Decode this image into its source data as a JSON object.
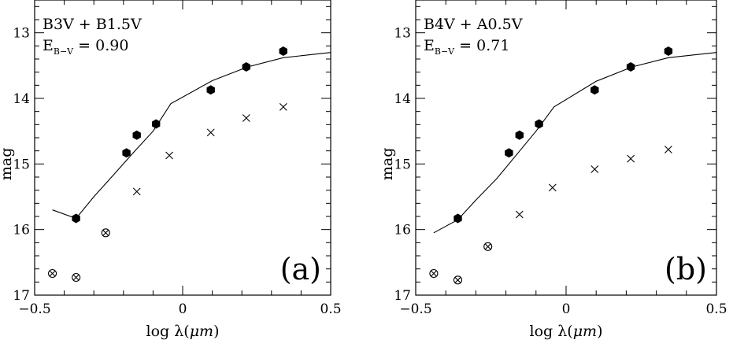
{
  "chart_data": [
    {
      "type": "scatter",
      "panel_label": "(a)",
      "annotation_line1": "B3V  +  B1.5V",
      "ebv_prefix": "E",
      "ebv_sub": "B−V",
      "ebv_value": " =  0.90",
      "xlabel_main": "log λ(",
      "xlabel_unit": "μm",
      "xlabel_close": ")",
      "ylabel": "mag",
      "xlim": [
        -0.5,
        0.5
      ],
      "ylim": [
        17,
        12.5
      ],
      "y_inverted": true,
      "xticks": [
        -0.5,
        0,
        0.5
      ],
      "xtick_labels": [
        "−0.5",
        "0",
        "0.5"
      ],
      "yticks": [
        13,
        14,
        15,
        16,
        17
      ],
      "ytick_labels": [
        "13",
        "14",
        "15",
        "16",
        "17"
      ],
      "series": [
        {
          "marker": "filled-hexagon",
          "x": [
            -0.36,
            -0.19,
            -0.155,
            -0.09,
            0.095,
            0.215,
            0.34
          ],
          "y": [
            15.83,
            14.83,
            14.56,
            14.39,
            13.87,
            13.52,
            13.28
          ]
        },
        {
          "marker": "cross",
          "x": [
            -0.155,
            -0.045,
            0.095,
            0.215,
            0.34
          ],
          "y": [
            15.42,
            14.87,
            14.52,
            14.3,
            14.13
          ]
        },
        {
          "marker": "circled-cross",
          "x": [
            -0.44,
            -0.36,
            -0.26
          ],
          "y": [
            16.67,
            16.73,
            16.05
          ]
        },
        {
          "marker": "line",
          "x": [
            -0.44,
            -0.36,
            -0.3,
            -0.23,
            -0.165,
            -0.1,
            -0.04,
            0.1,
            0.22,
            0.34,
            0.5
          ],
          "y": [
            15.7,
            15.83,
            15.5,
            15.15,
            14.82,
            14.5,
            14.08,
            13.73,
            13.52,
            13.38,
            13.3
          ]
        }
      ]
    },
    {
      "type": "scatter",
      "panel_label": "(b)",
      "annotation_line1": "B4V  +  A0.5V",
      "ebv_prefix": "E",
      "ebv_sub": "B−V",
      "ebv_value": " =  0.71",
      "xlabel_main": "log λ(",
      "xlabel_unit": "μm",
      "xlabel_close": ")",
      "ylabel": "mag",
      "xlim": [
        -0.5,
        0.5
      ],
      "ylim": [
        17,
        12.5
      ],
      "y_inverted": true,
      "xticks": [
        -0.5,
        0,
        0.5
      ],
      "xtick_labels": [
        "−0.5",
        "0",
        "0.5"
      ],
      "yticks": [
        13,
        14,
        15,
        16,
        17
      ],
      "ytick_labels": [
        "13",
        "14",
        "15",
        "16",
        "17"
      ],
      "series": [
        {
          "marker": "filled-hexagon",
          "x": [
            -0.36,
            -0.19,
            -0.155,
            -0.09,
            0.095,
            0.215,
            0.34
          ],
          "y": [
            15.83,
            14.83,
            14.56,
            14.39,
            13.87,
            13.52,
            13.28
          ]
        },
        {
          "marker": "cross",
          "x": [
            -0.155,
            -0.045,
            0.095,
            0.215,
            0.34
          ],
          "y": [
            15.77,
            15.36,
            15.08,
            14.92,
            14.78
          ]
        },
        {
          "marker": "circled-cross",
          "x": [
            -0.44,
            -0.36,
            -0.26
          ],
          "y": [
            16.67,
            16.77,
            16.26
          ]
        },
        {
          "marker": "line",
          "x": [
            -0.44,
            -0.36,
            -0.3,
            -0.23,
            -0.165,
            -0.1,
            -0.04,
            0.1,
            0.22,
            0.34,
            0.5
          ],
          "y": [
            16.05,
            15.85,
            15.55,
            15.22,
            14.86,
            14.5,
            14.13,
            13.74,
            13.52,
            13.38,
            13.3
          ]
        }
      ]
    }
  ]
}
